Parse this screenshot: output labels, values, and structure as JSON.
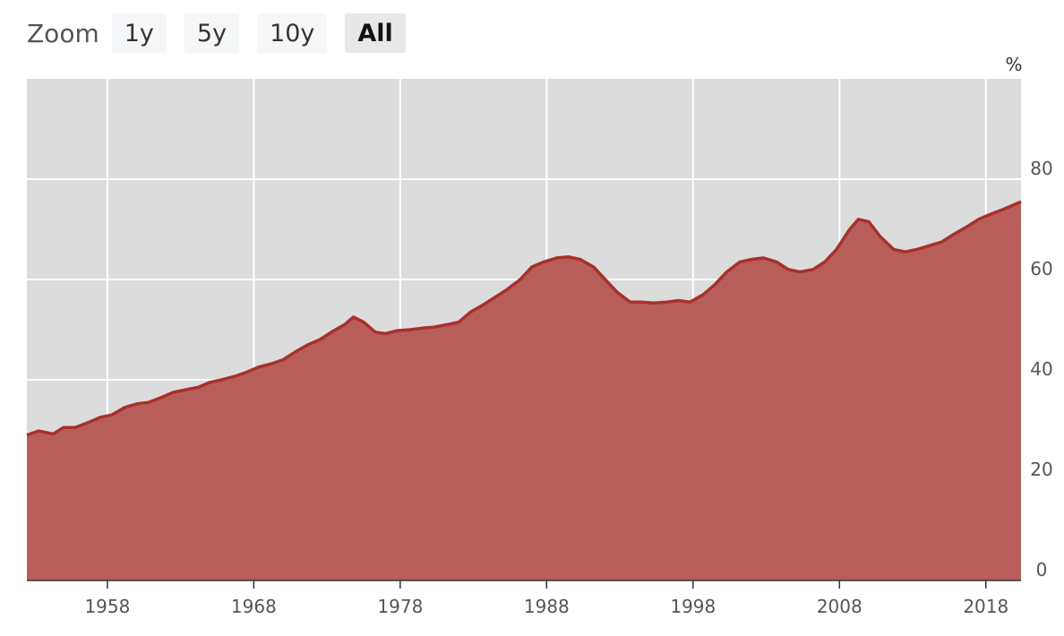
{
  "toolbar": {
    "zoom_label": "Zoom",
    "buttons": [
      {
        "label": "1y",
        "active": false
      },
      {
        "label": "5y",
        "active": false
      },
      {
        "label": "10y",
        "active": false
      },
      {
        "label": "All",
        "active": true
      }
    ]
  },
  "colors": {
    "plot_background": "#dcdcdc",
    "area_fill": "#b85e5a",
    "line": "#a8302c",
    "grid": "#ffffff"
  },
  "chart_data": {
    "type": "area",
    "title": "",
    "xlabel": "",
    "ylabel": "%",
    "xlim": [
      1952.5,
      2020.4
    ],
    "ylim": [
      0,
      100
    ],
    "grid": true,
    "y_axis_position": "right",
    "x_ticks": [
      "1958",
      "1968",
      "1978",
      "1988",
      "1998",
      "2008",
      "2018"
    ],
    "y_ticks": [
      "0",
      "20",
      "40",
      "60",
      "80"
    ],
    "series": [
      {
        "x": [
          1952.5,
          1953.3,
          1954.3,
          1955.0,
          1955.8,
          1956.7,
          1957.5,
          1958.3,
          1959.2,
          1960.0,
          1960.8,
          1961.7,
          1962.5,
          1963.3,
          1964.2,
          1965.0,
          1965.8,
          1966.7,
          1967.5,
          1968.3,
          1969.2,
          1970.0,
          1970.8,
          1971.7,
          1972.5,
          1973.3,
          1974.2,
          1974.8,
          1975.5,
          1976.3,
          1977.0,
          1977.8,
          1978.7,
          1979.5,
          1980.3,
          1981.2,
          1982.0,
          1982.8,
          1983.7,
          1984.5,
          1985.3,
          1986.2,
          1987.0,
          1987.8,
          1988.7,
          1989.5,
          1990.3,
          1991.2,
          1992.0,
          1992.8,
          1993.7,
          1994.5,
          1995.3,
          1996.2,
          1997.0,
          1997.8,
          1998.7,
          1999.5,
          2000.3,
          2001.2,
          2002.0,
          2002.8,
          2003.7,
          2004.5,
          2005.3,
          2006.2,
          2007.0,
          2007.8,
          2008.7,
          2009.3,
          2010.0,
          2010.8,
          2011.7,
          2012.5,
          2013.3,
          2014.2,
          2015.0,
          2015.8,
          2016.7,
          2017.5,
          2018.3,
          2019.2,
          2020.0,
          2020.4
        ],
        "values": [
          29.0,
          29.8,
          29.2,
          30.5,
          30.5,
          31.5,
          32.5,
          33.0,
          34.5,
          35.2,
          35.5,
          36.5,
          37.5,
          38.0,
          38.5,
          39.5,
          40.0,
          40.7,
          41.5,
          42.5,
          43.2,
          44.0,
          45.5,
          47.0,
          48.0,
          49.5,
          51.0,
          52.5,
          51.5,
          49.5,
          49.2,
          49.8,
          50.0,
          50.3,
          50.5,
          51.0,
          51.5,
          53.5,
          55.0,
          56.5,
          58.0,
          60.0,
          62.5,
          63.5,
          64.3,
          64.5,
          64.0,
          62.5,
          60.0,
          57.5,
          55.5,
          55.5,
          55.3,
          55.5,
          55.8,
          55.5,
          57.0,
          59.0,
          61.5,
          63.5,
          64.0,
          64.3,
          63.5,
          62.0,
          61.5,
          62.0,
          63.5,
          66.0,
          70.0,
          72.0,
          71.5,
          68.5,
          66.0,
          65.5,
          66.0,
          66.8,
          67.5,
          69.0,
          70.5,
          72.0,
          73.0,
          74.0,
          75.0,
          75.5
        ]
      }
    ]
  }
}
